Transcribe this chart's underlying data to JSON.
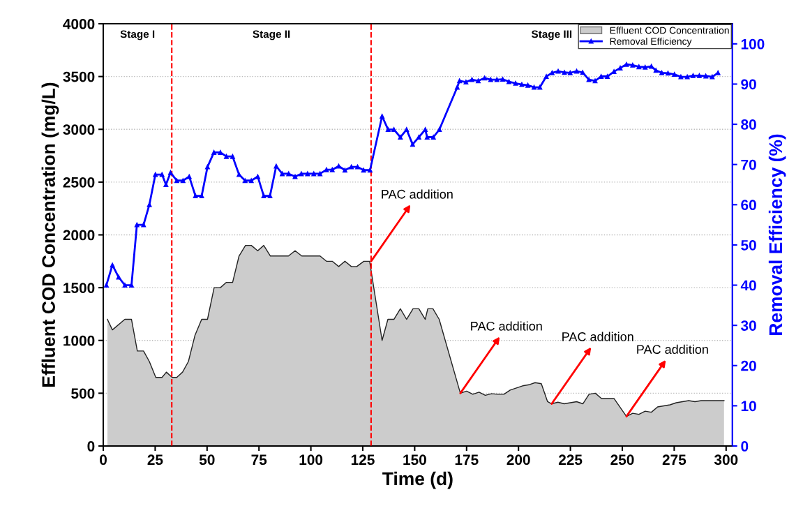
{
  "chart_data": {
    "type": "line",
    "xlabel": "Time (d)",
    "ylabel": "Effluent COD Concentration (mg/L)",
    "y2label": "Removal Efficiency (%)",
    "xlim": [
      0,
      303
    ],
    "xticks": [
      0,
      25,
      50,
      75,
      100,
      125,
      150,
      175,
      200,
      225,
      250,
      275,
      300
    ],
    "ylim": [
      0,
      4000
    ],
    "yticks": [
      0,
      500,
      1000,
      1500,
      2000,
      2500,
      3000,
      3500,
      4000
    ],
    "y2lim": [
      0,
      105
    ],
    "y2ticks": [
      0,
      10,
      20,
      30,
      40,
      50,
      60,
      70,
      80,
      90,
      100
    ],
    "grid": "y",
    "legend": "top right",
    "series": [
      {
        "name": "Effluent COD Concentration",
        "type": "area",
        "color": "#cccccc",
        "x": [
          2,
          4.4,
          10.4,
          13.6,
          16.4,
          19.4,
          22.2,
          25.3,
          28.3,
          30.4,
          33.2,
          35.4,
          38.2,
          41,
          44.2,
          47.4,
          50.2,
          53.4,
          56.4,
          59.3,
          62.3,
          65.4,
          68.5,
          71.3,
          74.4,
          77.3,
          80.5,
          83.4,
          89.2,
          92.4,
          95.6,
          104.4,
          107.5,
          110.3,
          113.4,
          116.4,
          119.5,
          122.1,
          125.5,
          128.3,
          134.3,
          137.1,
          140,
          143.1,
          146.1,
          149.2,
          152,
          155.1,
          156.3,
          158.8,
          161.8,
          172,
          175,
          178,
          181,
          184,
          187,
          190,
          193,
          196,
          199,
          202,
          205,
          208,
          211,
          214,
          216,
          219,
          222,
          225,
          228,
          231,
          234,
          237,
          240,
          243,
          246,
          252,
          255,
          258,
          261,
          264,
          267,
          270,
          273,
          276,
          279,
          282,
          285,
          288,
          291,
          294,
          297,
          299
        ],
        "values": [
          1200,
          1100,
          1200,
          1200,
          900,
          900,
          800,
          650,
          650,
          700,
          650,
          650,
          700,
          800,
          1050,
          1200,
          1200,
          1500,
          1500,
          1550,
          1550,
          1800,
          1900,
          1900,
          1850,
          1900,
          1800,
          1800,
          1800,
          1850,
          1800,
          1800,
          1750,
          1750,
          1700,
          1750,
          1700,
          1700,
          1750,
          1750,
          1000,
          1200,
          1200,
          1300,
          1200,
          1300,
          1300,
          1200,
          1300,
          1300,
          1200,
          500,
          520,
          490,
          510,
          480,
          495,
          490,
          490,
          530,
          550,
          570,
          580,
          600,
          590,
          420,
          400,
          415,
          400,
          410,
          420,
          400,
          490,
          500,
          450,
          450,
          450,
          280,
          310,
          300,
          330,
          320,
          370,
          380,
          390,
          410,
          420,
          430,
          420,
          430,
          430,
          430,
          430,
          430
        ]
      },
      {
        "name": "Removal Efficiency",
        "axis": "y2",
        "color": "#0000ff",
        "marker": "triangle",
        "x": [
          1.5,
          4.4,
          7.4,
          10.4,
          13.6,
          16.2,
          19.4,
          22.2,
          25.1,
          28.3,
          30.2,
          32.4,
          35.4,
          38.4,
          41.4,
          44.4,
          47.4,
          50.2,
          53.3,
          56.4,
          59.3,
          62.3,
          65.4,
          68.3,
          71.3,
          74.4,
          77.3,
          80.3,
          83.3,
          86.2,
          89.3,
          92.4,
          95.4,
          98.4,
          101.4,
          104.4,
          107.5,
          110.3,
          113.4,
          116.4,
          119.5,
          122.5,
          125.4,
          128.5,
          134.3,
          137.2,
          140,
          143.1,
          146.1,
          149,
          152,
          155.1,
          156,
          159,
          161.9,
          170.5,
          171.6,
          174.7,
          177.6,
          180.6,
          183.7,
          186.6,
          189.6,
          192.4,
          195.4,
          198.6,
          201.6,
          204.5,
          207.5,
          210.3,
          213.4,
          216.2,
          219.1,
          222.1,
          224.9,
          228,
          230.9,
          233.9,
          236.9,
          239.8,
          242.8,
          246,
          249,
          252,
          255,
          258,
          261,
          264,
          266.2,
          269,
          272,
          275.1,
          278.2,
          281.3,
          284.1,
          287.1,
          290.2,
          293.3,
          296.1
        ],
        "values": [
          40,
          45,
          42,
          40,
          40,
          55,
          55,
          60,
          67.5,
          67.5,
          65,
          68,
          66,
          66,
          67,
          62.2,
          62.2,
          69.4,
          73,
          73,
          72,
          72,
          67.5,
          66,
          66,
          67,
          62.2,
          62.2,
          69.6,
          67.7,
          67.7,
          67,
          67.7,
          67.7,
          67.7,
          67.7,
          68.7,
          68.7,
          69.6,
          68.6,
          69.4,
          69.4,
          68.6,
          68.6,
          82,
          78.7,
          78.7,
          76.8,
          78.7,
          75,
          76.8,
          78.7,
          76.8,
          76.8,
          78.7,
          89.2,
          90.8,
          90.5,
          91.1,
          90.8,
          91.5,
          91.1,
          91.1,
          91.2,
          90.6,
          90.2,
          89.9,
          89.7,
          89.2,
          89.2,
          91.9,
          92.8,
          93.2,
          92.9,
          92.8,
          93.2,
          92.9,
          91.1,
          90.8,
          91.9,
          91.9,
          93.1,
          94,
          94.9,
          94.7,
          94.3,
          94.2,
          94.4,
          93.4,
          92.8,
          92.7,
          92.4,
          91.8,
          91.8,
          92.1,
          92.1,
          92,
          91.8,
          92.8
        ]
      }
    ],
    "ref_lines": [
      {
        "axis": "x",
        "value": 33,
        "color": "#ff0000",
        "line_style": "dashed"
      },
      {
        "axis": "x",
        "value": 129,
        "color": "#ff0000",
        "line_style": "dashed"
      }
    ],
    "annotations": [
      "Stage I",
      "Stage II",
      "Stage III",
      {
        "text": "PAC addition",
        "x": 129,
        "y": 1750
      },
      {
        "text": "PAC addition",
        "x": 172,
        "y": 500
      },
      {
        "text": "PAC addition",
        "x": 216,
        "y": 400
      },
      {
        "text": "PAC addition",
        "x": 252,
        "y": 280
      }
    ]
  }
}
